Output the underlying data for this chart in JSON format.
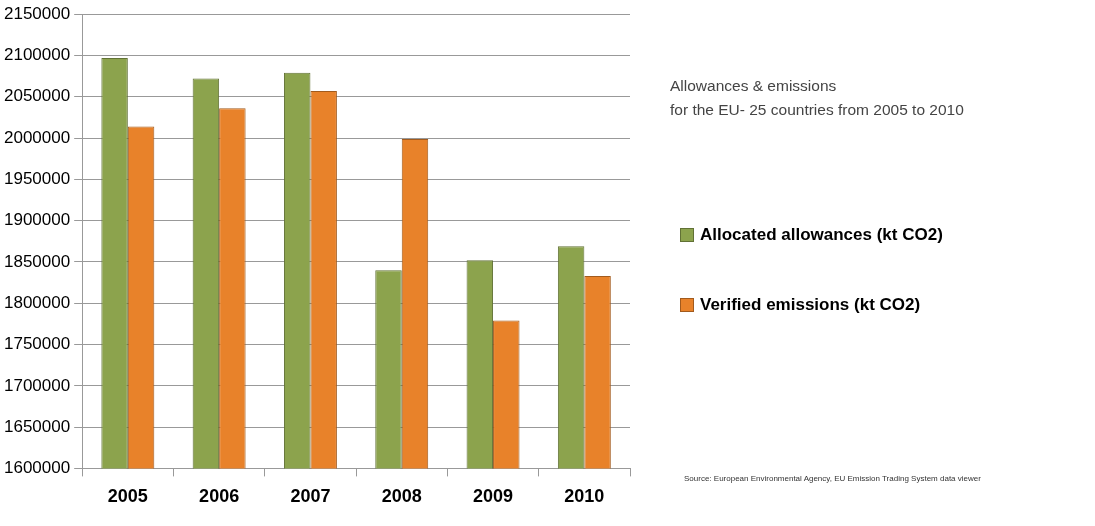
{
  "chart_data": {
    "type": "bar",
    "title": "Allowances & emissions",
    "subtitle": "for the EU- 25 countries from 2005 to 2010",
    "categories": [
      "2005",
      "2006",
      "2007",
      "2008",
      "2009",
      "2010"
    ],
    "series": [
      {
        "name": "Allocated allowances (kt CO2)",
        "color": "#8ca34d",
        "values": [
          2097000,
          2072000,
          2079000,
          1840000,
          1852000,
          1869000
        ]
      },
      {
        "name": "Verified emissions (kt CO2)",
        "color": "#e8822a",
        "values": [
          2014000,
          2036000,
          2057000,
          1999000,
          1779000,
          1833000
        ]
      }
    ],
    "ylim": [
      1600000,
      2150000
    ],
    "yticks": [
      1600000,
      1650000,
      1700000,
      1750000,
      1800000,
      1850000,
      1900000,
      1950000,
      2000000,
      2050000,
      2100000,
      2150000
    ],
    "grid": "y",
    "legend": "right",
    "annotations": [
      "Source: European Environmental Agency, EU Emission Trading System data viewer"
    ]
  }
}
